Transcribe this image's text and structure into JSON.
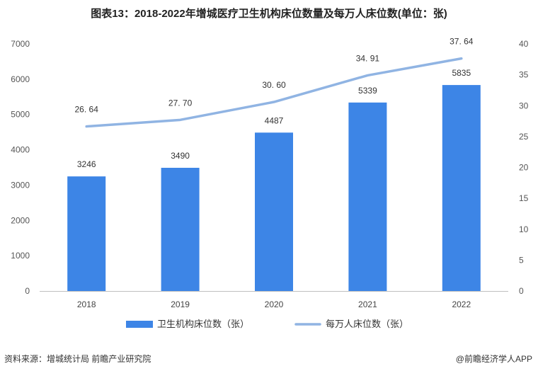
{
  "title": "图表13：2018-2022年增城医疗卫生机构床位数量及每万人床位数(单位：张)",
  "footer": {
    "source": "资料来源：增城统计局 前瞻产业研究院",
    "brand": "@前瞻经济学人APP"
  },
  "colors": {
    "bar": "#3d85e6",
    "line": "#90b4e3"
  },
  "chart_data": {
    "type": "bar",
    "categories": [
      "2018",
      "2019",
      "2020",
      "2021",
      "2022"
    ],
    "series": [
      {
        "name": "卫生机构床位数（张）",
        "type": "bar",
        "axis": "left",
        "values": [
          3246,
          3490,
          4487,
          5339,
          5835
        ],
        "labels": [
          "3246",
          "3490",
          "4487",
          "5339",
          "5835"
        ]
      },
      {
        "name": "每万人床位数（张）",
        "type": "line",
        "axis": "right",
        "values": [
          26.64,
          27.7,
          30.6,
          34.91,
          37.64
        ],
        "labels": [
          "26. 64",
          "27. 70",
          "30. 60",
          "34. 91",
          "37. 64"
        ]
      }
    ],
    "y_left": {
      "range": [
        0,
        7000
      ],
      "ticks": [
        "0",
        "1000",
        "2000",
        "3000",
        "4000",
        "5000",
        "6000",
        "7000"
      ]
    },
    "y_right": {
      "range": [
        0,
        40
      ],
      "ticks": [
        "0",
        "5",
        "10",
        "15",
        "20",
        "25",
        "30",
        "35",
        "40"
      ]
    },
    "legend_position": "bottom",
    "grid": false
  }
}
